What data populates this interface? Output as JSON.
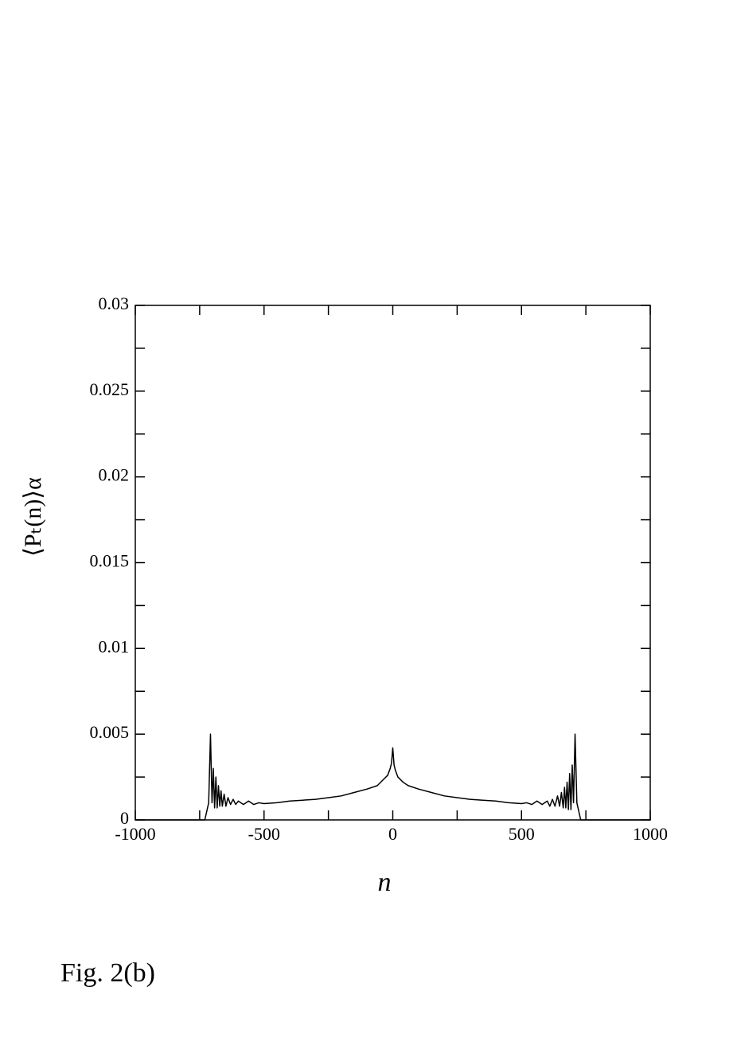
{
  "chart_data": {
    "type": "line",
    "xlabel": "n",
    "ylabel": "⟨Pₜ(n)⟩α",
    "caption": "Fig. 2(b)",
    "xlim": [
      -1000,
      1000
    ],
    "ylim": [
      0,
      0.03
    ],
    "xticks": [
      -1000,
      -500,
      0,
      500,
      1000
    ],
    "yticks": [
      0,
      0.005,
      0.01,
      0.015,
      0.02,
      0.025,
      0.03
    ],
    "xminorticks": [
      -750,
      -250,
      250,
      750
    ],
    "yminorticks": [
      0.0025,
      0.0075,
      0.0125,
      0.0175,
      0.0225,
      0.0275
    ],
    "series": [
      {
        "color": "#000000",
        "x": [
          -1000,
          -730,
          -715,
          -708,
          -702,
          -697,
          -692,
          -687,
          -682,
          -677,
          -672,
          -667,
          -662,
          -655,
          -648,
          -640,
          -630,
          -620,
          -610,
          -600,
          -580,
          -560,
          -540,
          -520,
          -500,
          -450,
          -400,
          -350,
          -300,
          -250,
          -200,
          -150,
          -100,
          -60,
          -40,
          -20,
          -10,
          -5,
          0,
          5,
          10,
          20,
          40,
          60,
          100,
          150,
          200,
          250,
          300,
          350,
          400,
          450,
          500,
          520,
          540,
          560,
          580,
          600,
          610,
          620,
          630,
          640,
          648,
          655,
          662,
          667,
          672,
          677,
          682,
          687,
          692,
          697,
          702,
          708,
          715,
          730,
          1000
        ],
        "values": [
          0,
          0,
          0.001,
          0.005,
          0.001,
          0.003,
          0.0007,
          0.0025,
          0.0007,
          0.002,
          0.0008,
          0.0017,
          0.0008,
          0.0015,
          0.0008,
          0.0013,
          0.0009,
          0.0012,
          0.0009,
          0.0011,
          0.0009,
          0.0011,
          0.0009,
          0.001,
          0.00095,
          0.001,
          0.0011,
          0.00115,
          0.0012,
          0.0013,
          0.0014,
          0.0016,
          0.0018,
          0.002,
          0.0023,
          0.0026,
          0.003,
          0.0033,
          0.0042,
          0.0032,
          0.0029,
          0.0025,
          0.0022,
          0.002,
          0.0018,
          0.0016,
          0.0014,
          0.0013,
          0.0012,
          0.00115,
          0.0011,
          0.001,
          0.00095,
          0.001,
          0.0009,
          0.0011,
          0.0009,
          0.0011,
          0.0008,
          0.0012,
          0.0008,
          0.0014,
          0.0008,
          0.0016,
          0.0007,
          0.0019,
          0.0007,
          0.0022,
          0.0006,
          0.0027,
          0.0006,
          0.0032,
          0.001,
          0.005,
          0.001,
          0,
          0
        ]
      }
    ]
  }
}
